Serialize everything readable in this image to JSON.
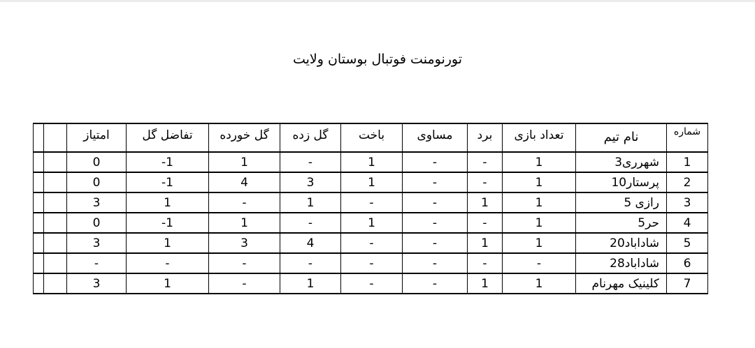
{
  "page": {
    "title": "تورنومنت فوتبال بوستان ولایت"
  },
  "table": {
    "direction": "rtl",
    "headers": {
      "number": "شماره",
      "team": "نام تیم",
      "played": "تعداد بازی",
      "wins": "برد",
      "draws": "مساوی",
      "losses": "باخت",
      "goals_for": "گل زده",
      "goals_against": "گل خورده",
      "goal_diff": "تفاضل گل",
      "points": "امتیاز",
      "extra1": "",
      "extra2": ""
    },
    "column_order": [
      "number",
      "team",
      "played",
      "wins",
      "draws",
      "losses",
      "goals_for",
      "goals_against",
      "goal_diff",
      "points",
      "extra1",
      "extra2"
    ],
    "rows": [
      {
        "number": "1",
        "team": "شهرری3",
        "played": "1",
        "wins": "-",
        "draws": "-",
        "losses": "1",
        "goals_for": "-",
        "goals_against": "1",
        "goal_diff": "-1",
        "points": "0",
        "extra1": "",
        "extra2": ""
      },
      {
        "number": "2",
        "team": "پرستار10",
        "played": "1",
        "wins": "-",
        "draws": "-",
        "losses": "1",
        "goals_for": "3",
        "goals_against": "4",
        "goal_diff": "-1",
        "points": "0",
        "extra1": "",
        "extra2": ""
      },
      {
        "number": "3",
        "team": "رازی 5",
        "played": "1",
        "wins": "1",
        "draws": "-",
        "losses": "-",
        "goals_for": "1",
        "goals_against": "-",
        "goal_diff": "1",
        "points": "3",
        "extra1": "",
        "extra2": ""
      },
      {
        "number": "4",
        "team": "حر5",
        "played": "1",
        "wins": "-",
        "draws": "-",
        "losses": "1",
        "goals_for": "-",
        "goals_against": "1",
        "goal_diff": "-1",
        "points": "0",
        "extra1": "",
        "extra2": ""
      },
      {
        "number": "5",
        "team": "شاداباد20",
        "played": "1",
        "wins": "1",
        "draws": "-",
        "losses": "-",
        "goals_for": "4",
        "goals_against": "3",
        "goal_diff": "1",
        "points": "3",
        "extra1": "",
        "extra2": ""
      },
      {
        "number": "6",
        "team": "شاداباد28",
        "played": "-",
        "wins": "-",
        "draws": "-",
        "losses": "-",
        "goals_for": "-",
        "goals_against": "-",
        "goal_diff": "-",
        "points": "-",
        "extra1": "",
        "extra2": ""
      },
      {
        "number": "7",
        "team": "کلینیک مهرنام",
        "played": "1",
        "wins": "1",
        "draws": "-",
        "losses": "-",
        "goals_for": "1",
        "goals_against": "-",
        "goal_diff": "1",
        "points": "3",
        "extra1": "",
        "extra2": ""
      }
    ]
  }
}
